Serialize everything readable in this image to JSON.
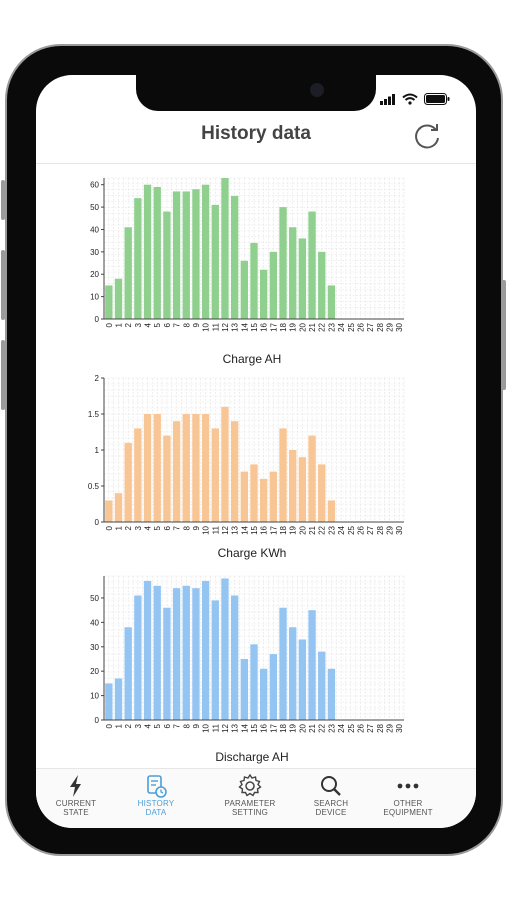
{
  "header": {
    "title": "History data"
  },
  "tabs": [
    {
      "label": "CURRENT\nSTATE",
      "icon": "bolt-icon",
      "active": false
    },
    {
      "label": "HISTORY\nDATA",
      "icon": "history-icon",
      "active": true
    },
    {
      "label": "PARAMETER\nSETTING",
      "icon": "gear-icon",
      "active": false
    },
    {
      "label": "SEARCH\nDEVICE",
      "icon": "search-icon",
      "active": false
    },
    {
      "label": "OTHER\nEQUIPMENT",
      "icon": "more-icon",
      "active": false
    }
  ],
  "colors": {
    "accent": "#4a9fd8",
    "charge_ah": "#8fd08f",
    "charge_kwh": "#f8c594",
    "discharge_ah": "#94c4f2"
  },
  "chart_data": [
    {
      "type": "bar",
      "xlabel": "Charge AH",
      "categories": [
        "0",
        "1",
        "2",
        "3",
        "4",
        "5",
        "6",
        "7",
        "8",
        "9",
        "10",
        "11",
        "12",
        "13",
        "14",
        "15",
        "16",
        "17",
        "18",
        "19",
        "20",
        "21",
        "22",
        "23",
        "24",
        "25",
        "26",
        "27",
        "28",
        "29",
        "30"
      ],
      "values": [
        15,
        18,
        41,
        54,
        60,
        59,
        48,
        57,
        57,
        58,
        60,
        51,
        63,
        55,
        26,
        34,
        22,
        30,
        50,
        41,
        36,
        48,
        30,
        15,
        0,
        0,
        0,
        0,
        0,
        0,
        0
      ],
      "yticks": [
        "0",
        "10",
        "20",
        "30",
        "40",
        "50",
        "60"
      ],
      "ylim": [
        0,
        63
      ],
      "color": "#8fd08f"
    },
    {
      "type": "bar",
      "xlabel": "Charge KWh",
      "categories": [
        "0",
        "1",
        "2",
        "3",
        "4",
        "5",
        "6",
        "7",
        "8",
        "9",
        "10",
        "11",
        "12",
        "13",
        "14",
        "15",
        "16",
        "17",
        "18",
        "19",
        "20",
        "21",
        "22",
        "23",
        "24",
        "25",
        "26",
        "27",
        "28",
        "29",
        "30"
      ],
      "values": [
        0.3,
        0.4,
        1.1,
        1.3,
        1.5,
        1.5,
        1.2,
        1.4,
        1.5,
        1.5,
        1.5,
        1.3,
        1.6,
        1.4,
        0.7,
        0.8,
        0.6,
        0.7,
        1.3,
        1.0,
        0.9,
        1.2,
        0.8,
        0.3,
        0,
        0,
        0,
        0,
        0,
        0,
        0
      ],
      "yticks": [
        "0",
        "0.5",
        "1",
        "1.5",
        "2"
      ],
      "ylim": [
        0,
        2
      ],
      "color": "#f8c594"
    },
    {
      "type": "bar",
      "xlabel": "Discharge AH",
      "categories": [
        "0",
        "1",
        "2",
        "3",
        "4",
        "5",
        "6",
        "7",
        "8",
        "9",
        "10",
        "11",
        "12",
        "13",
        "14",
        "15",
        "16",
        "17",
        "18",
        "19",
        "20",
        "21",
        "22",
        "23",
        "24",
        "25",
        "26",
        "27",
        "28",
        "29",
        "30"
      ],
      "values": [
        15,
        17,
        38,
        51,
        57,
        55,
        46,
        54,
        55,
        54,
        57,
        49,
        58,
        51,
        25,
        31,
        21,
        27,
        46,
        38,
        33,
        45,
        28,
        21,
        0,
        0,
        0,
        0,
        0,
        0,
        0
      ],
      "yticks": [
        "0",
        "10",
        "20",
        "30",
        "40",
        "50"
      ],
      "ylim": [
        0,
        59
      ],
      "color": "#94c4f2"
    }
  ]
}
